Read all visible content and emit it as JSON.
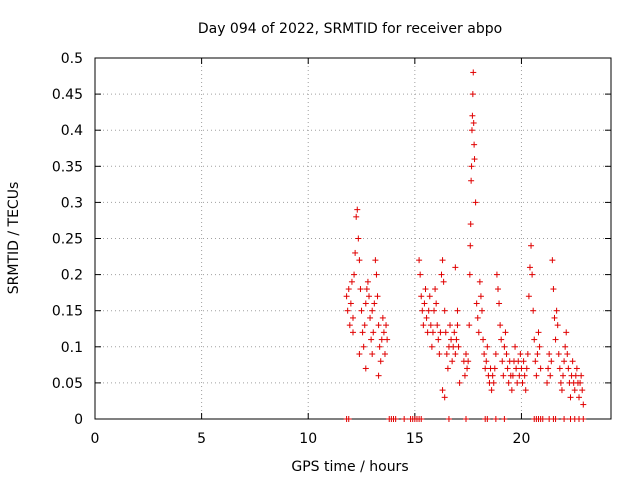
{
  "chart_data": {
    "type": "scatter",
    "title": "Day 094 of 2022, SRMTID for receiver abpo",
    "xlabel": "GPS time / hours",
    "ylabel": "SRMTID / TECUs",
    "xlim": [
      0,
      24.2
    ],
    "ylim": [
      0,
      0.5
    ],
    "xticks": [
      0,
      5,
      10,
      15,
      20
    ],
    "xtick_labels": [
      "0",
      "5",
      "10",
      "15",
      "20"
    ],
    "yticks": [
      0,
      0.05,
      0.1,
      0.15,
      0.2,
      0.25,
      0.3,
      0.35,
      0.4,
      0.45,
      0.5
    ],
    "ytick_labels": [
      "0",
      "0.05",
      "0.1",
      "0.15",
      "0.2",
      "0.25",
      "0.3",
      "0.35",
      "0.4",
      "0.45",
      "0.5"
    ],
    "grid": true,
    "marker": "+",
    "color": "#e00000",
    "series": [
      {
        "name": "SRMTID",
        "points": [
          [
            11.8,
            0.17
          ],
          [
            11.85,
            0.15
          ],
          [
            11.9,
            0.18
          ],
          [
            11.95,
            0.13
          ],
          [
            12.0,
            0.16
          ],
          [
            12.05,
            0.19
          ],
          [
            12.1,
            0.14
          ],
          [
            12.15,
            0.2
          ],
          [
            12.2,
            0.23
          ],
          [
            12.25,
            0.28
          ],
          [
            12.3,
            0.29
          ],
          [
            12.35,
            0.25
          ],
          [
            12.4,
            0.22
          ],
          [
            12.45,
            0.18
          ],
          [
            12.5,
            0.15
          ],
          [
            12.55,
            0.12
          ],
          [
            12.6,
            0.1
          ],
          [
            12.65,
            0.13
          ],
          [
            12.7,
            0.16
          ],
          [
            12.75,
            0.18
          ],
          [
            12.8,
            0.19
          ],
          [
            12.85,
            0.17
          ],
          [
            12.9,
            0.14
          ],
          [
            12.95,
            0.11
          ],
          [
            13.0,
            0.09
          ],
          [
            13.05,
            0.12
          ],
          [
            13.1,
            0.16
          ],
          [
            13.15,
            0.22
          ],
          [
            13.2,
            0.2
          ],
          [
            13.25,
            0.17
          ],
          [
            13.3,
            0.13
          ],
          [
            13.35,
            0.1
          ],
          [
            13.4,
            0.08
          ],
          [
            13.45,
            0.11
          ],
          [
            13.5,
            0.14
          ],
          [
            13.55,
            0.12
          ],
          [
            13.6,
            0.09
          ],
          [
            13.65,
            0.13
          ],
          [
            13.7,
            0.11
          ],
          [
            12.1,
            0.12
          ],
          [
            12.4,
            0.09
          ],
          [
            12.7,
            0.07
          ],
          [
            13.0,
            0.15
          ],
          [
            13.3,
            0.06
          ],
          [
            15.2,
            0.22
          ],
          [
            15.25,
            0.2
          ],
          [
            15.3,
            0.17
          ],
          [
            15.35,
            0.15
          ],
          [
            15.4,
            0.13
          ],
          [
            15.45,
            0.16
          ],
          [
            15.5,
            0.18
          ],
          [
            15.55,
            0.14
          ],
          [
            15.6,
            0.12
          ],
          [
            15.65,
            0.15
          ],
          [
            15.7,
            0.17
          ],
          [
            15.75,
            0.13
          ],
          [
            15.8,
            0.1
          ],
          [
            15.85,
            0.12
          ],
          [
            15.9,
            0.15
          ],
          [
            15.95,
            0.18
          ],
          [
            16.0,
            0.16
          ],
          [
            16.05,
            0.13
          ],
          [
            16.1,
            0.11
          ],
          [
            16.15,
            0.09
          ],
          [
            16.2,
            0.12
          ],
          [
            16.25,
            0.2
          ],
          [
            16.3,
            0.22
          ],
          [
            16.35,
            0.19
          ],
          [
            16.4,
            0.15
          ],
          [
            16.45,
            0.12
          ],
          [
            16.5,
            0.09
          ],
          [
            16.55,
            0.07
          ],
          [
            16.6,
            0.1
          ],
          [
            16.65,
            0.13
          ],
          [
            16.7,
            0.11
          ],
          [
            16.75,
            0.08
          ],
          [
            16.8,
            0.1
          ],
          [
            16.85,
            0.12
          ],
          [
            16.9,
            0.09
          ],
          [
            16.95,
            0.11
          ],
          [
            17.0,
            0.13
          ],
          [
            17.05,
            0.1
          ],
          [
            16.3,
            0.04
          ],
          [
            16.4,
            0.03
          ],
          [
            16.9,
            0.21
          ],
          [
            17.0,
            0.15
          ],
          [
            17.1,
            0.05
          ],
          [
            17.3,
            0.08
          ],
          [
            17.35,
            0.06
          ],
          [
            17.4,
            0.09
          ],
          [
            17.45,
            0.07
          ],
          [
            17.5,
            0.08
          ],
          [
            17.55,
            0.13
          ],
          [
            17.58,
            0.2
          ],
          [
            17.6,
            0.24
          ],
          [
            17.62,
            0.27
          ],
          [
            17.64,
            0.33
          ],
          [
            17.66,
            0.35
          ],
          [
            17.68,
            0.4
          ],
          [
            17.7,
            0.42
          ],
          [
            17.72,
            0.45
          ],
          [
            17.74,
            0.48
          ],
          [
            17.76,
            0.41
          ],
          [
            17.78,
            0.38
          ],
          [
            17.8,
            0.36
          ],
          [
            17.85,
            0.3
          ],
          [
            17.9,
            0.16
          ],
          [
            17.95,
            0.14
          ],
          [
            18.0,
            0.12
          ],
          [
            18.05,
            0.19
          ],
          [
            18.1,
            0.17
          ],
          [
            18.15,
            0.15
          ],
          [
            18.2,
            0.11
          ],
          [
            18.25,
            0.09
          ],
          [
            18.3,
            0.07
          ],
          [
            18.35,
            0.08
          ],
          [
            18.4,
            0.1
          ],
          [
            18.45,
            0.06
          ],
          [
            18.5,
            0.05
          ],
          [
            18.55,
            0.07
          ],
          [
            18.6,
            0.04
          ],
          [
            18.65,
            0.06
          ],
          [
            18.7,
            0.05
          ],
          [
            18.75,
            0.07
          ],
          [
            18.8,
            0.09
          ],
          [
            18.85,
            0.2
          ],
          [
            18.9,
            0.18
          ],
          [
            18.95,
            0.16
          ],
          [
            19.0,
            0.13
          ],
          [
            19.05,
            0.11
          ],
          [
            19.1,
            0.08
          ],
          [
            19.15,
            0.06
          ],
          [
            19.2,
            0.1
          ],
          [
            19.25,
            0.12
          ],
          [
            19.3,
            0.09
          ],
          [
            19.35,
            0.07
          ],
          [
            19.4,
            0.05
          ],
          [
            19.45,
            0.08
          ],
          [
            19.5,
            0.06
          ],
          [
            19.55,
            0.04
          ],
          [
            19.6,
            0.06
          ],
          [
            19.65,
            0.08
          ],
          [
            19.7,
            0.1
          ],
          [
            19.75,
            0.07
          ],
          [
            19.8,
            0.05
          ],
          [
            19.85,
            0.08
          ],
          [
            19.9,
            0.06
          ],
          [
            19.95,
            0.09
          ],
          [
            20.0,
            0.07
          ],
          [
            20.05,
            0.05
          ],
          [
            20.1,
            0.08
          ],
          [
            20.15,
            0.06
          ],
          [
            20.2,
            0.04
          ],
          [
            20.25,
            0.07
          ],
          [
            20.3,
            0.09
          ],
          [
            20.35,
            0.17
          ],
          [
            20.4,
            0.21
          ],
          [
            20.45,
            0.24
          ],
          [
            20.5,
            0.2
          ],
          [
            20.55,
            0.15
          ],
          [
            20.6,
            0.11
          ],
          [
            20.65,
            0.08
          ],
          [
            20.7,
            0.06
          ],
          [
            20.75,
            0.09
          ],
          [
            20.8,
            0.12
          ],
          [
            20.85,
            0.1
          ],
          [
            20.9,
            0.07
          ],
          [
            21.2,
            0.05
          ],
          [
            21.25,
            0.07
          ],
          [
            21.3,
            0.09
          ],
          [
            21.35,
            0.06
          ],
          [
            21.4,
            0.08
          ],
          [
            21.45,
            0.22
          ],
          [
            21.5,
            0.18
          ],
          [
            21.55,
            0.14
          ],
          [
            21.6,
            0.11
          ],
          [
            21.65,
            0.15
          ],
          [
            21.7,
            0.13
          ],
          [
            21.75,
            0.09
          ],
          [
            21.8,
            0.07
          ],
          [
            21.85,
            0.05
          ],
          [
            21.9,
            0.04
          ],
          [
            21.95,
            0.06
          ],
          [
            22.0,
            0.08
          ],
          [
            22.05,
            0.1
          ],
          [
            22.1,
            0.12
          ],
          [
            22.15,
            0.09
          ],
          [
            22.2,
            0.07
          ],
          [
            22.25,
            0.05
          ],
          [
            22.3,
            0.03
          ],
          [
            22.35,
            0.06
          ],
          [
            22.4,
            0.08
          ],
          [
            22.45,
            0.05
          ],
          [
            22.5,
            0.04
          ],
          [
            22.55,
            0.06
          ],
          [
            22.6,
            0.07
          ],
          [
            22.65,
            0.05
          ],
          [
            22.7,
            0.03
          ],
          [
            22.75,
            0.05
          ],
          [
            22.8,
            0.06
          ],
          [
            22.85,
            0.04
          ],
          [
            22.9,
            0.02
          ],
          [
            11.8,
            0.0
          ],
          [
            11.9,
            0.0
          ],
          [
            13.8,
            0.0
          ],
          [
            13.9,
            0.0
          ],
          [
            14.0,
            0.0
          ],
          [
            14.1,
            0.0
          ],
          [
            14.5,
            0.0
          ],
          [
            14.8,
            0.0
          ],
          [
            14.9,
            0.0
          ],
          [
            15.0,
            0.0
          ],
          [
            15.1,
            0.0
          ],
          [
            15.2,
            0.0
          ],
          [
            15.3,
            0.0
          ],
          [
            16.6,
            0.0
          ],
          [
            17.4,
            0.0
          ],
          [
            18.3,
            0.0
          ],
          [
            18.4,
            0.0
          ],
          [
            18.8,
            0.0
          ],
          [
            19.2,
            0.0
          ],
          [
            20.6,
            0.0
          ],
          [
            20.7,
            0.0
          ],
          [
            20.8,
            0.0
          ],
          [
            20.9,
            0.0
          ],
          [
            21.0,
            0.0
          ],
          [
            21.3,
            0.0
          ],
          [
            21.5,
            0.0
          ],
          [
            21.6,
            0.0
          ],
          [
            22.0,
            0.0
          ],
          [
            22.3,
            0.0
          ],
          [
            22.5,
            0.0
          ],
          [
            22.7,
            0.0
          ],
          [
            22.9,
            0.0
          ]
        ]
      }
    ]
  }
}
